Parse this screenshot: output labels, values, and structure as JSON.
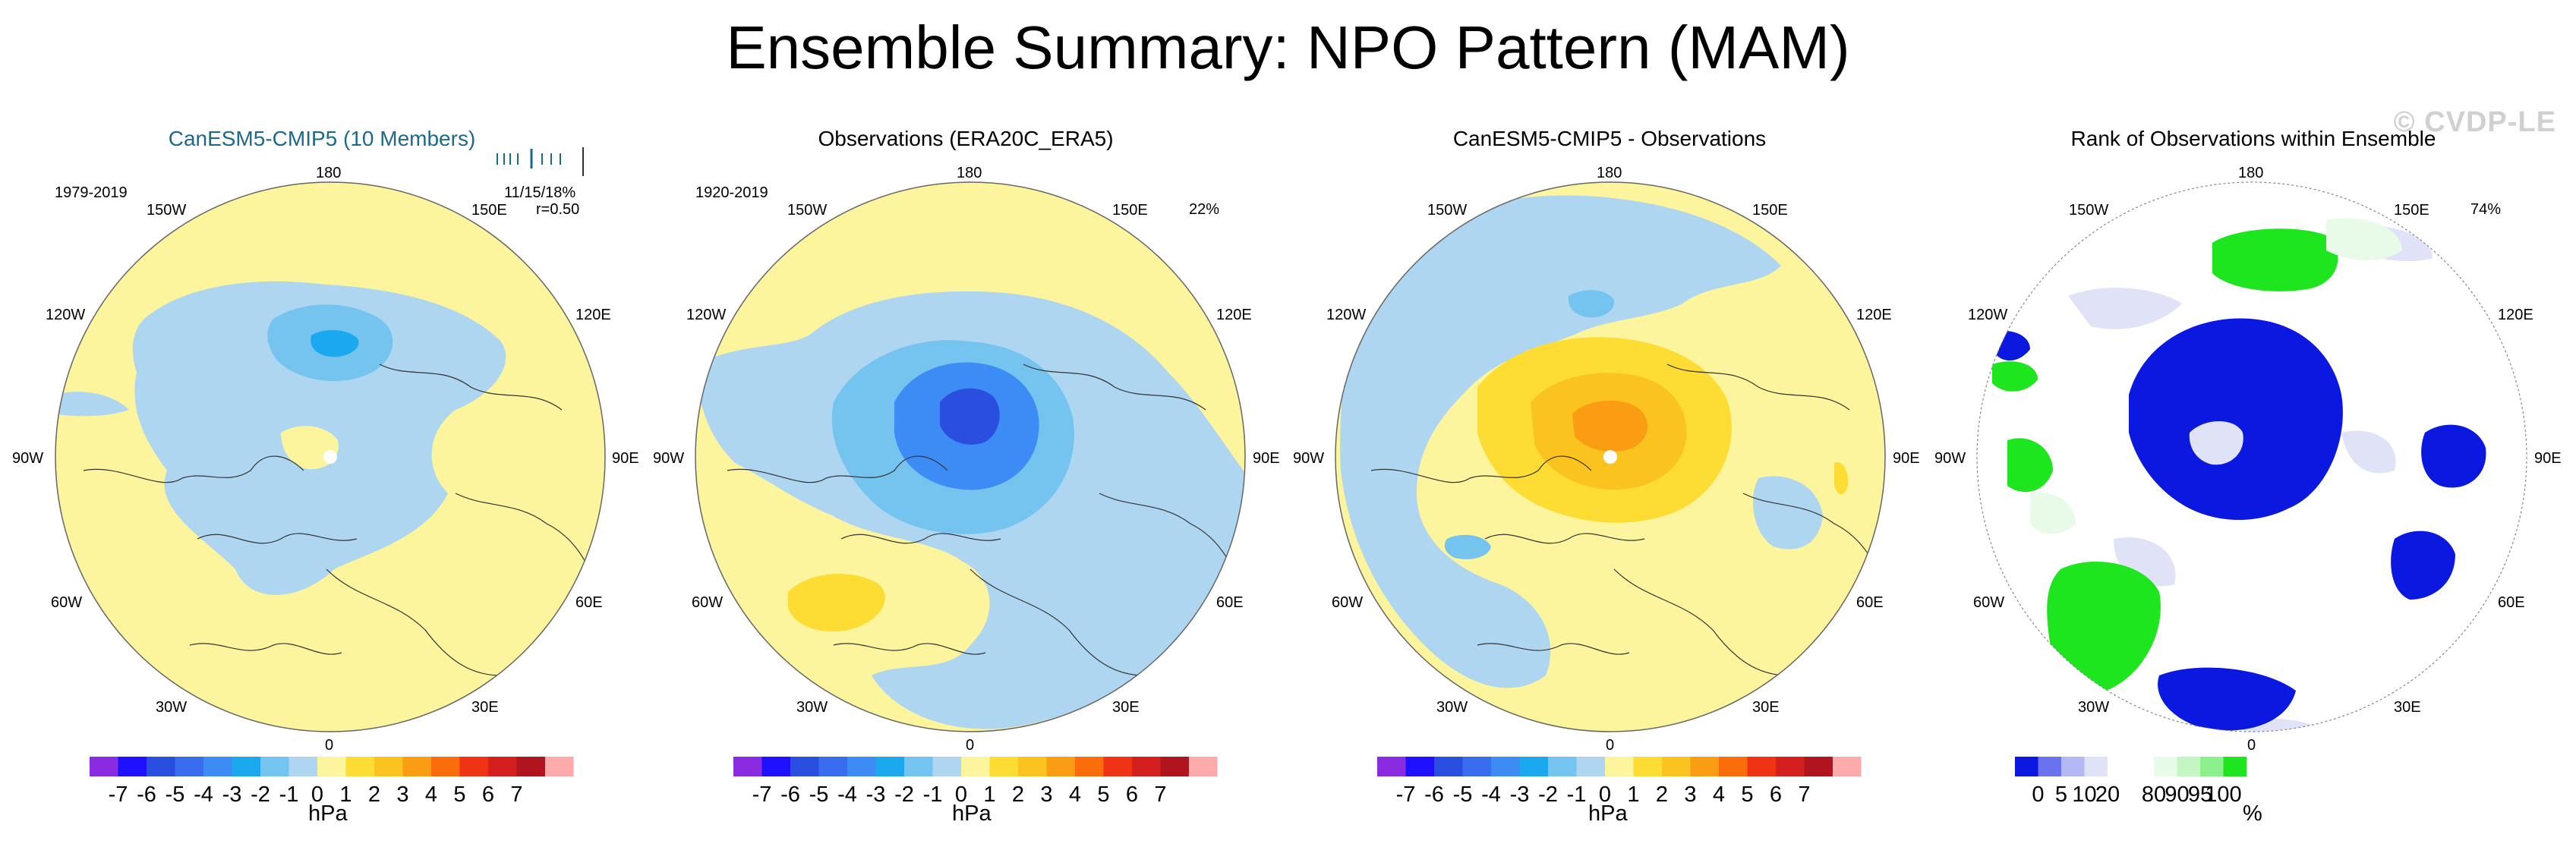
{
  "page": {
    "title": "Ensemble Summary: NPO Pattern (MAM)",
    "watermark": "© CVDP-LE"
  },
  "colors": {
    "pressure_scale": [
      "#8a2be2",
      "#1f10ff",
      "#2a4fe0",
      "#3a6cf0",
      "#3d8cf5",
      "#1aa8ef",
      "#75c3ef",
      "#aed6f1",
      "#fdf59e",
      "#fddc34",
      "#fbc31f",
      "#fb9d12",
      "#fa6d0a",
      "#ef3314",
      "#d51f1f",
      "#b0141e",
      "#ffaaaa"
    ],
    "rank_scale": [
      "#0a18e0",
      "#6a72ee",
      "#b4b8f4",
      "#e0e2f8",
      "#ffffff",
      "#ffffff",
      "#e8fbe8",
      "#c4f6c4",
      "#8cf08c",
      "#1ee61e"
    ]
  },
  "chart_data": [
    {
      "type": "map",
      "title": "CanESM5-CMIP5 (10 Members)",
      "period": "1979-2019",
      "stats_line": "11/15/18%",
      "correlation": "r=0.50",
      "longitude_labels": [
        "180",
        "150E",
        "120E",
        "90E",
        "60E",
        "30E",
        "0",
        "30W",
        "60W",
        "90W",
        "120W",
        "150W"
      ],
      "colorbar": {
        "unit": "hPa",
        "ticks": [
          "-7",
          "-6",
          "-5",
          "-4",
          "-3",
          "-2",
          "-1",
          "0",
          "1",
          "2",
          "3",
          "4",
          "5",
          "6",
          "7"
        ]
      }
    },
    {
      "type": "map",
      "title": "Observations (ERA20C_ERA5)",
      "period": "1920-2019",
      "percent": "22%",
      "longitude_labels": [
        "180",
        "150E",
        "120E",
        "90E",
        "60E",
        "30E",
        "0",
        "30W",
        "60W",
        "90W",
        "120W",
        "150W"
      ],
      "colorbar": {
        "unit": "hPa",
        "ticks": [
          "-7",
          "-6",
          "-5",
          "-4",
          "-3",
          "-2",
          "-1",
          "0",
          "1",
          "2",
          "3",
          "4",
          "5",
          "6",
          "7"
        ]
      }
    },
    {
      "type": "map",
      "title": "CanESM5-CMIP5 - Observations",
      "longitude_labels": [
        "180",
        "150E",
        "120E",
        "90E",
        "60E",
        "30E",
        "0",
        "30W",
        "60W",
        "90W",
        "120W",
        "150W"
      ],
      "colorbar": {
        "unit": "hPa",
        "ticks": [
          "-7",
          "-6",
          "-5",
          "-4",
          "-3",
          "-2",
          "-1",
          "0",
          "1",
          "2",
          "3",
          "4",
          "5",
          "6",
          "7"
        ]
      }
    },
    {
      "type": "map",
      "title": "Rank of Observations within Ensemble",
      "percent": "74%",
      "longitude_labels": [
        "180",
        "150E",
        "120E",
        "90E",
        "60E",
        "30E",
        "0",
        "30W",
        "60W",
        "90W",
        "120W",
        "150W"
      ],
      "colorbar": {
        "unit": "%",
        "ticks": [
          "0",
          "5",
          "10",
          "20",
          "80",
          "90",
          "95",
          "100"
        ]
      }
    }
  ]
}
